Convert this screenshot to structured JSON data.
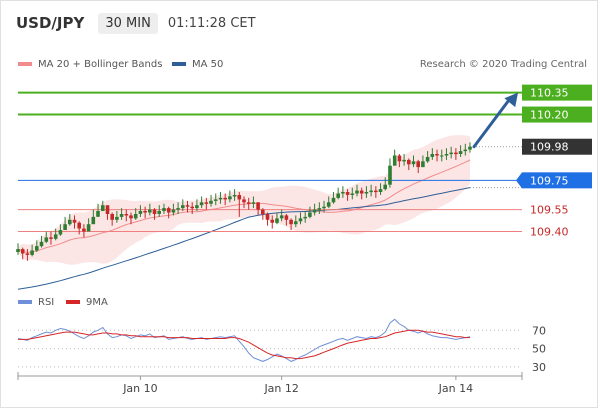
{
  "header": {
    "symbol": "USD/JPY",
    "timeframe": "30 MIN",
    "time": "01:11:28 CET"
  },
  "legend_main": [
    {
      "name": "MA 20 + Bollinger Bands",
      "color": "#f28b8b"
    },
    {
      "name": "MA 50",
      "color": "#2f5f98"
    }
  ],
  "legend_rsi": [
    {
      "name": "RSI",
      "color": "#6f8fd8"
    },
    {
      "name": "9MA",
      "color": "#d62728"
    }
  ],
  "credit": "Research © 2020 Trading Central",
  "colors": {
    "bull": "#2e7d32",
    "bear": "#c62828",
    "resistance": "#4caf1f",
    "support": "#f08080",
    "pivot": "#1f6fe5",
    "current": "#333333",
    "ma50": "#2f5f98",
    "band_fill": "#fbdcdc",
    "ma20": "#f28b8b",
    "arrow": "#2f5f98"
  },
  "chart_data": {
    "type": "candlestick",
    "price_axis": {
      "min": 109.0,
      "max": 110.45
    },
    "levels": [
      {
        "value": 110.35,
        "label": "110.35",
        "kind": "resistance"
      },
      {
        "value": 110.2,
        "label": "110.20",
        "kind": "resistance"
      },
      {
        "value": 109.98,
        "label": "109.98",
        "kind": "current"
      },
      {
        "value": 109.75,
        "label": "109.75",
        "kind": "pivot"
      },
      {
        "value": 109.55,
        "label": "109.55",
        "kind": "support"
      },
      {
        "value": 109.4,
        "label": "109.40",
        "kind": "support"
      }
    ],
    "x_labels": [
      "Jan 10",
      "Jan 12",
      "Jan 14"
    ],
    "x_label_index": [
      26,
      56,
      93
    ],
    "forecast_target": 110.35,
    "close": [
      109.28,
      109.25,
      109.24,
      109.27,
      109.3,
      109.33,
      109.36,
      109.35,
      109.38,
      109.41,
      109.45,
      109.48,
      109.46,
      109.42,
      109.4,
      109.45,
      109.5,
      109.54,
      109.58,
      109.52,
      109.48,
      109.5,
      109.52,
      109.51,
      109.49,
      109.52,
      109.54,
      109.53,
      109.55,
      109.52,
      109.54,
      109.56,
      109.53,
      109.55,
      109.56,
      109.58,
      109.57,
      109.56,
      109.58,
      109.6,
      109.59,
      109.61,
      109.62,
      109.63,
      109.62,
      109.64,
      109.65,
      109.62,
      109.6,
      109.59,
      109.6,
      109.55,
      109.52,
      109.48,
      109.46,
      109.49,
      109.51,
      109.48,
      109.45,
      109.47,
      109.49,
      109.5,
      109.53,
      109.55,
      109.56,
      109.57,
      109.6,
      109.63,
      109.66,
      109.67,
      109.65,
      109.66,
      109.68,
      109.66,
      109.67,
      109.68,
      109.67,
      109.69,
      109.72,
      109.85,
      109.92,
      109.88,
      109.89,
      109.86,
      109.88,
      109.84,
      109.88,
      109.91,
      109.93,
      109.92,
      109.92,
      109.93,
      109.94,
      109.93,
      109.95,
      109.96,
      109.98
    ],
    "high": [
      109.32,
      109.29,
      109.28,
      109.31,
      109.34,
      109.37,
      109.4,
      109.4,
      109.42,
      109.45,
      109.5,
      109.52,
      109.51,
      109.47,
      109.45,
      109.49,
      109.55,
      109.59,
      109.61,
      109.57,
      109.53,
      109.54,
      109.56,
      109.55,
      109.53,
      109.56,
      109.58,
      109.57,
      109.59,
      109.56,
      109.58,
      109.59,
      109.57,
      109.59,
      109.6,
      109.62,
      109.61,
      109.6,
      109.62,
      109.64,
      109.63,
      109.65,
      109.66,
      109.67,
      109.66,
      109.68,
      109.69,
      109.67,
      109.64,
      109.63,
      109.64,
      109.6,
      109.56,
      109.53,
      109.51,
      109.53,
      109.55,
      109.52,
      109.49,
      109.51,
      109.53,
      109.54,
      109.57,
      109.59,
      109.6,
      109.61,
      109.64,
      109.67,
      109.7,
      109.71,
      109.69,
      109.7,
      109.72,
      109.7,
      109.71,
      109.72,
      109.71,
      109.73,
      109.77,
      109.9,
      109.96,
      109.93,
      109.93,
      109.9,
      109.92,
      109.89,
      109.92,
      109.95,
      109.97,
      109.96,
      109.96,
      109.97,
      109.98,
      109.97,
      109.99,
      110.0,
      110.01
    ],
    "low": [
      109.24,
      109.21,
      109.2,
      109.23,
      109.26,
      109.29,
      109.32,
      109.31,
      109.34,
      109.37,
      109.41,
      109.44,
      109.42,
      109.38,
      109.36,
      109.41,
      109.46,
      109.5,
      109.54,
      109.48,
      109.44,
      109.46,
      109.48,
      109.47,
      109.45,
      109.48,
      109.5,
      109.49,
      109.51,
      109.48,
      109.5,
      109.52,
      109.49,
      109.51,
      109.52,
      109.54,
      109.53,
      109.52,
      109.54,
      109.56,
      109.55,
      109.57,
      109.58,
      109.59,
      109.58,
      109.6,
      109.61,
      109.5,
      109.56,
      109.55,
      109.56,
      109.51,
      109.48,
      109.44,
      109.42,
      109.45,
      109.47,
      109.44,
      109.41,
      109.43,
      109.45,
      109.46,
      109.49,
      109.51,
      109.52,
      109.53,
      109.56,
      109.59,
      109.62,
      109.63,
      109.61,
      109.62,
      109.64,
      109.62,
      109.63,
      109.64,
      109.63,
      109.65,
      109.68,
      109.7,
      109.88,
      109.84,
      109.85,
      109.82,
      109.84,
      109.8,
      109.84,
      109.87,
      109.89,
      109.88,
      109.88,
      109.89,
      109.9,
      109.89,
      109.91,
      109.92,
      109.94
    ],
    "rsi_axis": {
      "min": 20,
      "max": 90,
      "ticks": [
        70,
        50,
        30
      ]
    },
    "rsi": [
      61,
      60,
      59,
      62,
      64,
      66,
      68,
      67,
      70,
      72,
      71,
      69,
      66,
      63,
      61,
      64,
      68,
      70,
      73,
      66,
      62,
      63,
      65,
      64,
      61,
      63,
      65,
      64,
      66,
      62,
      63,
      64,
      60,
      61,
      62,
      63,
      61,
      60,
      61,
      62,
      60,
      61,
      62,
      63,
      62,
      63,
      64,
      58,
      52,
      45,
      40,
      38,
      36,
      38,
      41,
      44,
      42,
      39,
      36,
      38,
      41,
      43,
      46,
      49,
      52,
      54,
      56,
      58,
      60,
      61,
      59,
      61,
      63,
      62,
      61,
      63,
      62,
      64,
      68,
      78,
      82,
      77,
      74,
      70,
      69,
      67,
      69,
      66,
      64,
      63,
      62,
      62,
      61,
      60,
      61,
      62,
      63
    ],
    "rsi_ma": [
      60,
      60,
      60,
      61,
      62,
      63,
      64,
      65,
      66,
      67,
      68,
      68,
      68,
      67,
      66,
      65,
      65,
      66,
      67,
      67,
      66,
      66,
      65,
      65,
      64,
      64,
      63,
      63,
      63,
      63,
      63,
      63,
      62,
      62,
      62,
      62,
      62,
      61,
      61,
      61,
      61,
      61,
      61,
      61,
      61,
      62,
      62,
      61,
      59,
      57,
      54,
      51,
      48,
      45,
      43,
      42,
      41,
      40,
      40,
      39,
      39,
      40,
      41,
      42,
      44,
      46,
      48,
      50,
      52,
      54,
      56,
      57,
      58,
      59,
      60,
      61,
      61,
      62,
      63,
      65,
      67,
      68,
      69,
      70,
      70,
      70,
      69,
      68,
      68,
      67,
      66,
      65,
      64,
      63,
      63,
      62,
      62
    ]
  }
}
